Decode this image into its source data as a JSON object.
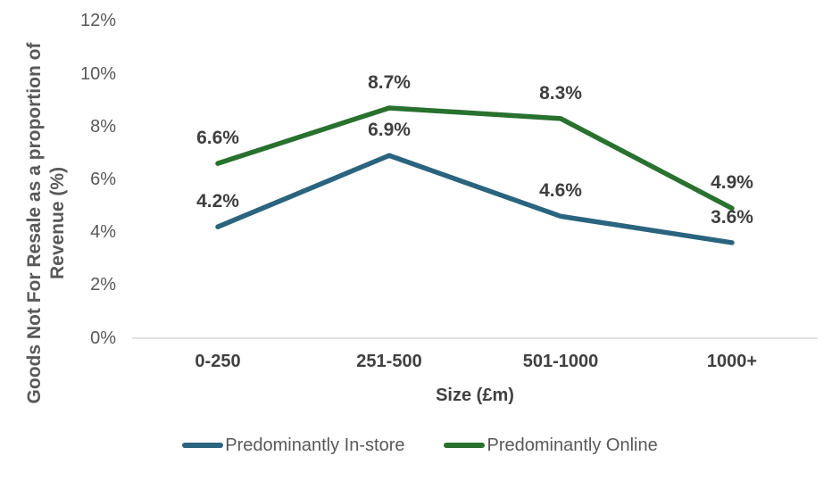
{
  "chart_data": {
    "type": "line",
    "title": "",
    "categories": [
      "0-250",
      "251-500",
      "501-1000",
      "1000+"
    ],
    "series": [
      {
        "name": "Predominantly In-store",
        "values": [
          4.2,
          6.9,
          4.6,
          3.6
        ],
        "labels": [
          "4.2%",
          "6.9%",
          "4.6%",
          "3.6%"
        ],
        "color": "#2A647F"
      },
      {
        "name": "Predominantly Online",
        "values": [
          6.6,
          8.7,
          8.3,
          4.9
        ],
        "labels": [
          "6.6%",
          "8.7%",
          "8.3%",
          "4.9%"
        ],
        "color": "#28712E"
      }
    ],
    "xlabel": "Size (£m)",
    "ylabel": "Goods Not For Resale as a proportion of Revenue (%)",
    "ylabel_lines": [
      "Goods Not For Resale as a proportion of",
      "Revenue (%)"
    ],
    "y_ticks": [
      {
        "value": 0,
        "label": "0%"
      },
      {
        "value": 2,
        "label": "2%"
      },
      {
        "value": 4,
        "label": "4%"
      },
      {
        "value": 6,
        "label": "6%"
      },
      {
        "value": 8,
        "label": "8%"
      },
      {
        "value": 10,
        "label": "10%"
      },
      {
        "value": 12,
        "label": "12%"
      }
    ],
    "ylim": [
      0,
      12
    ],
    "grid": false,
    "legend_position": "bottom",
    "colors": {
      "axis_line": "#D9D9D9",
      "tick_text": "#595959",
      "data_label_text": "#3F3F3F",
      "category_text": "#404040"
    }
  }
}
